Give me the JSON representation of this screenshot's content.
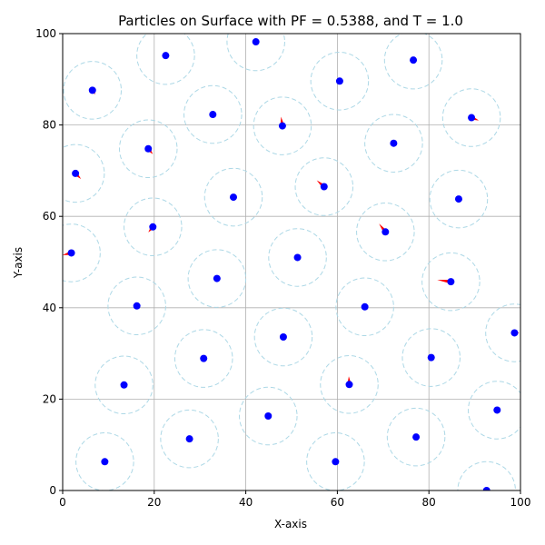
{
  "chart_data": {
    "type": "scatter",
    "title": "Particles on Surface with PF = 0.5388, and T = 1.0",
    "xlabel": "X-axis",
    "ylabel": "Y-axis",
    "xlim": [
      0,
      100
    ],
    "ylim": [
      0,
      100
    ],
    "xticks": [
      0,
      20,
      40,
      60,
      80,
      100
    ],
    "yticks": [
      0,
      20,
      40,
      60,
      80,
      100
    ],
    "grid": true,
    "circle_radius": 6.3,
    "colors": {
      "particle": "#0000ff",
      "circle": "#add8e6",
      "arrow": "#ff0000",
      "grid": "#b0b0b0"
    },
    "particles": [
      {
        "x": 6.5,
        "y": 87.6,
        "dx": 0.6,
        "dy": -0.9
      },
      {
        "x": 22.5,
        "y": 95.2,
        "dx": 0,
        "dy": 0
      },
      {
        "x": 42.2,
        "y": 98.2,
        "dx": 0,
        "dy": 0
      },
      {
        "x": 60.5,
        "y": 89.6,
        "dx": 0,
        "dy": 0
      },
      {
        "x": 76.6,
        "y": 94.2,
        "dx": 0,
        "dy": 0
      },
      {
        "x": 32.8,
        "y": 82.3,
        "dx": 0,
        "dy": 0
      },
      {
        "x": 48.0,
        "y": 79.8,
        "dx": -0.3,
        "dy": 2.0
      },
      {
        "x": 89.3,
        "y": 81.6,
        "dx": 1.6,
        "dy": -0.6
      },
      {
        "x": 18.7,
        "y": 74.8,
        "dx": 1.0,
        "dy": -1.2
      },
      {
        "x": 72.3,
        "y": 76.0,
        "dx": 0,
        "dy": 0
      },
      {
        "x": 2.8,
        "y": 69.4,
        "dx": 1.2,
        "dy": -1.2
      },
      {
        "x": 37.3,
        "y": 64.2,
        "dx": 0,
        "dy": 0
      },
      {
        "x": 57.1,
        "y": 66.5,
        "dx": -1.6,
        "dy": 1.4
      },
      {
        "x": 86.5,
        "y": 63.8,
        "dx": 0,
        "dy": 0
      },
      {
        "x": 19.7,
        "y": 57.7,
        "dx": -1.0,
        "dy": -1.2
      },
      {
        "x": 70.5,
        "y": 56.6,
        "dx": -1.4,
        "dy": 1.8
      },
      {
        "x": 1.9,
        "y": 52.0,
        "dx": -2.0,
        "dy": -0.5
      },
      {
        "x": 51.3,
        "y": 51.0,
        "dx": 0,
        "dy": 0
      },
      {
        "x": 33.7,
        "y": 46.4,
        "dx": 0,
        "dy": 0
      },
      {
        "x": 84.8,
        "y": 45.7,
        "dx": -3.0,
        "dy": 0.4
      },
      {
        "x": 16.2,
        "y": 40.4,
        "dx": 0,
        "dy": 0
      },
      {
        "x": 66.0,
        "y": 40.2,
        "dx": 0,
        "dy": 0
      },
      {
        "x": 48.2,
        "y": 33.6,
        "dx": 0,
        "dy": 0
      },
      {
        "x": 98.7,
        "y": 34.5,
        "dx": 1.0,
        "dy": 0
      },
      {
        "x": 30.8,
        "y": 28.9,
        "dx": 0,
        "dy": 0
      },
      {
        "x": 80.5,
        "y": 29.1,
        "dx": 0,
        "dy": 0
      },
      {
        "x": 13.4,
        "y": 23.1,
        "dx": 0,
        "dy": 0
      },
      {
        "x": 62.6,
        "y": 23.2,
        "dx": -0.1,
        "dy": 1.8
      },
      {
        "x": 94.9,
        "y": 17.6,
        "dx": 0,
        "dy": 0
      },
      {
        "x": 44.9,
        "y": 16.3,
        "dx": 0,
        "dy": 0
      },
      {
        "x": 27.7,
        "y": 11.3,
        "dx": 0,
        "dy": 0
      },
      {
        "x": 77.2,
        "y": 11.7,
        "dx": 0,
        "dy": 0
      },
      {
        "x": 9.2,
        "y": 6.3,
        "dx": 0,
        "dy": 0
      },
      {
        "x": 59.6,
        "y": 6.3,
        "dx": 0,
        "dy": 0
      },
      {
        "x": 92.6,
        "y": 0.0,
        "dx": 0,
        "dy": 0
      }
    ]
  }
}
